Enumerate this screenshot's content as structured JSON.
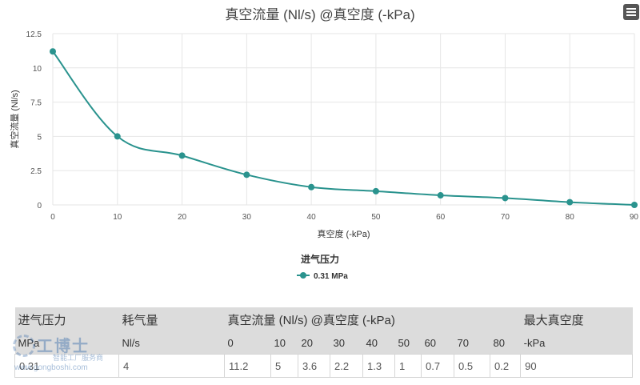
{
  "chart_data": {
    "type": "line",
    "title": "真空流量 (Nl/s) @真空度 (-kPa)",
    "xlabel": "真空度 (-kPa)",
    "ylabel": "真空流量 (Nl/s)",
    "x": [
      0,
      10,
      20,
      30,
      40,
      50,
      60,
      70,
      80,
      90
    ],
    "xticks": [
      "0",
      "10",
      "20",
      "30",
      "40",
      "50",
      "60",
      "70",
      "80",
      "90"
    ],
    "yticks": [
      "0",
      "2.5",
      "5",
      "7.5",
      "10",
      "12.5"
    ],
    "xlim": [
      0,
      90
    ],
    "ylim": [
      0,
      12.5
    ],
    "grid": true,
    "legend_title": "进气压力",
    "legend_position": "bottom-center",
    "series": [
      {
        "name": "0.31 MPa",
        "color": "#2a938e",
        "values": [
          11.2,
          5,
          3.6,
          2.2,
          1.3,
          1,
          0.7,
          0.5,
          0.2,
          0
        ]
      }
    ]
  },
  "table": {
    "header1": [
      "进气压力",
      "耗气量",
      "真空流量 (Nl/s) @真空度 (-kPa)",
      "最大真空度"
    ],
    "header2": [
      "MPa",
      "Nl/s",
      "0",
      "10",
      "20",
      "30",
      "40",
      "50",
      "60",
      "70",
      "80",
      "-kPa"
    ],
    "row": [
      "0.31",
      "4",
      "11.2",
      "5",
      "3.6",
      "2.2",
      "1.3",
      "1",
      "0.7",
      "0.5",
      "0.2",
      "90"
    ]
  },
  "watermark": {
    "logo": "工博士",
    "subtitle": "智能工厂服务商",
    "url": "www.gongboshi.com"
  },
  "menu_icon": "hamburger-menu-icon"
}
